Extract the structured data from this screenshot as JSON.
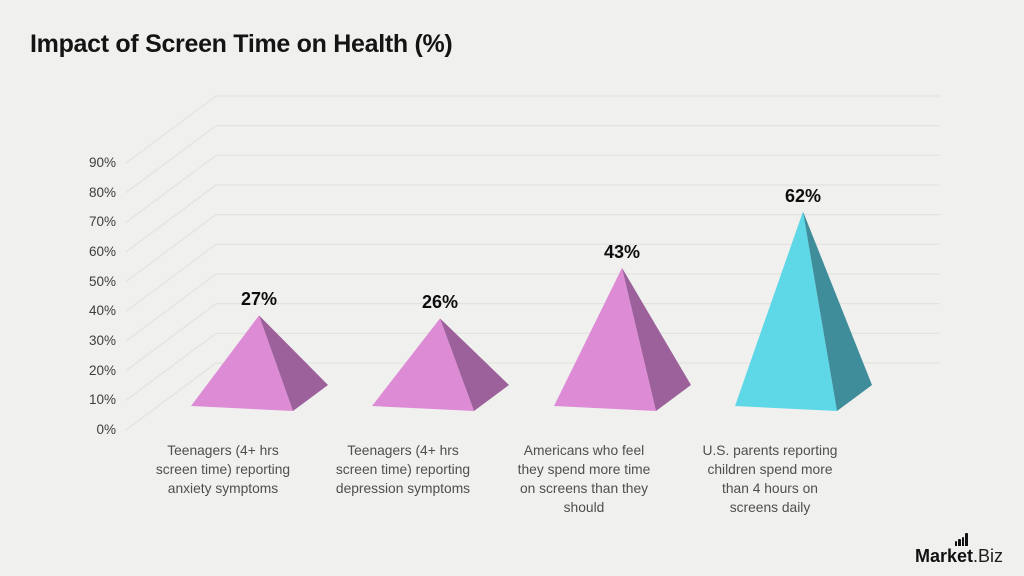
{
  "page": {
    "background_color": "#f0f0ee",
    "gridline_color": "#e2e2e0",
    "text_color_axis": "#3d3d3d",
    "text_color_category": "#4f4f4f"
  },
  "chart_data": {
    "type": "bar",
    "variant": "3d-pyramid",
    "title": "Impact of Screen Time on Health (%)",
    "categories": [
      [
        "Teenagers (4+ hrs",
        "screen time) reporting",
        "anxiety symptoms"
      ],
      [
        "Teenagers (4+ hrs",
        "screen time) reporting",
        "depression symptoms"
      ],
      [
        "Americans who feel",
        "they spend more time",
        "on screens than they",
        "should"
      ],
      [
        "U.S. parents reporting",
        "children spend more",
        "than 4 hours on",
        "screens daily"
      ]
    ],
    "values": [
      27,
      26,
      43,
      62
    ],
    "value_labels": [
      "27%",
      "26%",
      "43%",
      "62%"
    ],
    "bar_colors": [
      {
        "front": "#de8bd6",
        "side": "#9c619a"
      },
      {
        "front": "#de8bd6",
        "side": "#9c619a"
      },
      {
        "front": "#de8bd6",
        "side": "#9c619a"
      },
      {
        "front": "#5ed7e6",
        "side": "#3f8d9a"
      }
    ],
    "y_ticks": [
      "0%",
      "10%",
      "20%",
      "30%",
      "40%",
      "50%",
      "60%",
      "70%",
      "80%",
      "90%"
    ],
    "ylim": [
      0,
      90
    ],
    "xlabel": "",
    "ylabel": "",
    "grid": true,
    "legend": false
  },
  "logo": {
    "market": "Market",
    "suffix": ".Biz",
    "icon": "ascending-bars-icon"
  }
}
